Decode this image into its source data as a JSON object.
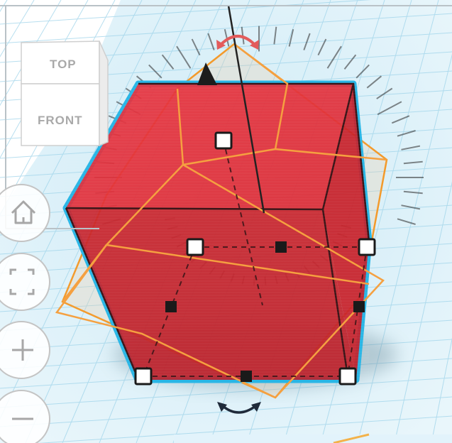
{
  "view_cube": {
    "top_label": "TOP",
    "front_label": "FRONT"
  },
  "view_controls": [
    {
      "name": "home-view-button",
      "icon": "home-icon"
    },
    {
      "name": "fit-view-button",
      "icon": "fit-to-view-icon"
    },
    {
      "name": "zoom-in-button",
      "icon": "plus-icon"
    },
    {
      "name": "zoom-out-button",
      "icon": "minus-icon"
    }
  ],
  "shape": {
    "type": "box",
    "fill": "#d9242f",
    "outline": "#29b6e6",
    "rotation_guide": "#f39a2b"
  },
  "colors": {
    "grid": "#bfe3f2",
    "grid_strong": "#8ecbe6",
    "handle": "#ffffff",
    "arrow": "#e35b5b"
  }
}
